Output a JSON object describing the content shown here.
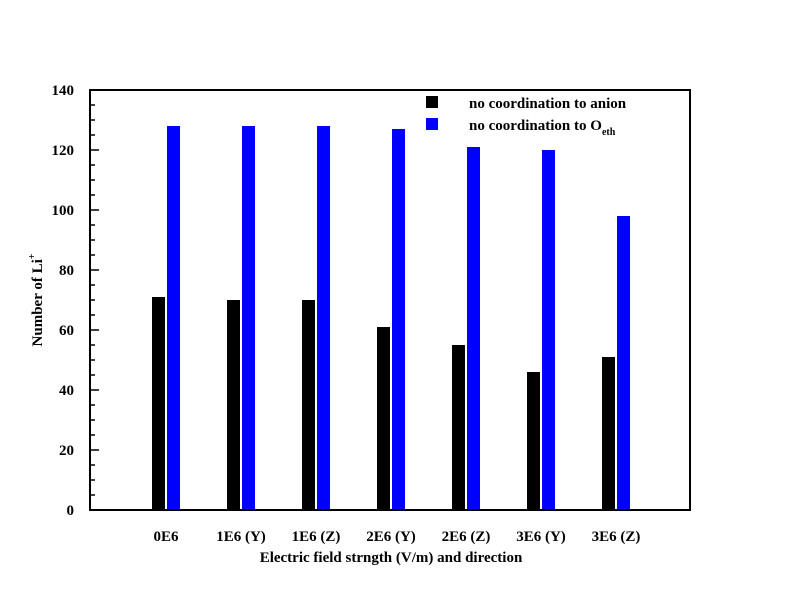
{
  "chart_data": {
    "type": "bar",
    "categories": [
      "0E6",
      "1E6 (Y)",
      "1E6 (Z)",
      "2E6 (Y)",
      "2E6 (Z)",
      "3E6 (Y)",
      "3E6 (Z)"
    ],
    "series": [
      {
        "name": "no coordination to anion",
        "color": "#000000",
        "values": [
          71,
          70,
          70,
          61,
          55,
          46,
          51
        ]
      },
      {
        "name": "no coordination to O",
        "name_subscript": "eth",
        "color": "#0000ff",
        "values": [
          128,
          128,
          128,
          127,
          121,
          120,
          98
        ]
      }
    ],
    "xlabel": "Electric field strngth (V/m) and direction",
    "ylabel": "Number of Li",
    "ylabel_superscript": "+",
    "ylim": [
      0,
      140
    ],
    "yticks": [
      0,
      20,
      40,
      60,
      80,
      100,
      120,
      140
    ],
    "legend_position": "top-right",
    "grid": false
  }
}
